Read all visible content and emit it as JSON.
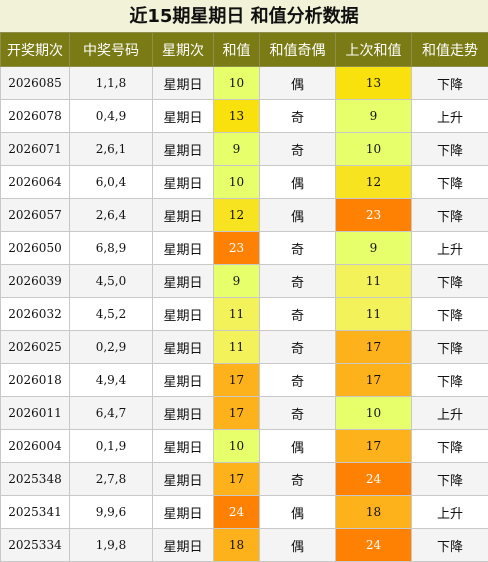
{
  "title": "近15期星期日 和值分析数据",
  "headers": [
    "开奖期次",
    "中奖号码",
    "星期次",
    "和值",
    "和值奇偶",
    "上次和值",
    "和值走势"
  ],
  "colors": {
    "level_9": "#e6ff6b",
    "level_10": "#e6ff6b",
    "level_11": "#f3f25b",
    "level_12": "#f7e31f",
    "level_13": "#f9e10d",
    "level_17": "#fdb11a",
    "level_18": "#fdb11a",
    "level_23": "#ff8103",
    "level_24": "#ff8103"
  },
  "rows": [
    {
      "period": "2026085",
      "numbers": "1,1,8",
      "weekday": "星期日",
      "sum": "10",
      "parity": "偶",
      "prev_sum": "13",
      "trend": "下降"
    },
    {
      "period": "2026078",
      "numbers": "0,4,9",
      "weekday": "星期日",
      "sum": "13",
      "parity": "奇",
      "prev_sum": "9",
      "trend": "上升"
    },
    {
      "period": "2026071",
      "numbers": "2,6,1",
      "weekday": "星期日",
      "sum": "9",
      "parity": "奇",
      "prev_sum": "10",
      "trend": "下降"
    },
    {
      "period": "2026064",
      "numbers": "6,0,4",
      "weekday": "星期日",
      "sum": "10",
      "parity": "偶",
      "prev_sum": "12",
      "trend": "下降"
    },
    {
      "period": "2026057",
      "numbers": "2,6,4",
      "weekday": "星期日",
      "sum": "12",
      "parity": "偶",
      "prev_sum": "23",
      "trend": "下降"
    },
    {
      "period": "2026050",
      "numbers": "6,8,9",
      "weekday": "星期日",
      "sum": "23",
      "parity": "奇",
      "prev_sum": "9",
      "trend": "上升"
    },
    {
      "period": "2026039",
      "numbers": "4,5,0",
      "weekday": "星期日",
      "sum": "9",
      "parity": "奇",
      "prev_sum": "11",
      "trend": "下降"
    },
    {
      "period": "2026032",
      "numbers": "4,5,2",
      "weekday": "星期日",
      "sum": "11",
      "parity": "奇",
      "prev_sum": "11",
      "trend": "下降"
    },
    {
      "period": "2026025",
      "numbers": "0,2,9",
      "weekday": "星期日",
      "sum": "11",
      "parity": "奇",
      "prev_sum": "17",
      "trend": "下降"
    },
    {
      "period": "2026018",
      "numbers": "4,9,4",
      "weekday": "星期日",
      "sum": "17",
      "parity": "奇",
      "prev_sum": "17",
      "trend": "下降"
    },
    {
      "period": "2026011",
      "numbers": "6,4,7",
      "weekday": "星期日",
      "sum": "17",
      "parity": "奇",
      "prev_sum": "10",
      "trend": "上升"
    },
    {
      "period": "2026004",
      "numbers": "0,1,9",
      "weekday": "星期日",
      "sum": "10",
      "parity": "偶",
      "prev_sum": "17",
      "trend": "下降"
    },
    {
      "period": "2025348",
      "numbers": "2,7,8",
      "weekday": "星期日",
      "sum": "17",
      "parity": "奇",
      "prev_sum": "24",
      "trend": "下降"
    },
    {
      "period": "2025341",
      "numbers": "9,9,6",
      "weekday": "星期日",
      "sum": "24",
      "parity": "偶",
      "prev_sum": "18",
      "trend": "上升"
    },
    {
      "period": "2025334",
      "numbers": "1,9,8",
      "weekday": "星期日",
      "sum": "18",
      "parity": "偶",
      "prev_sum": "24",
      "trend": "下降"
    }
  ]
}
